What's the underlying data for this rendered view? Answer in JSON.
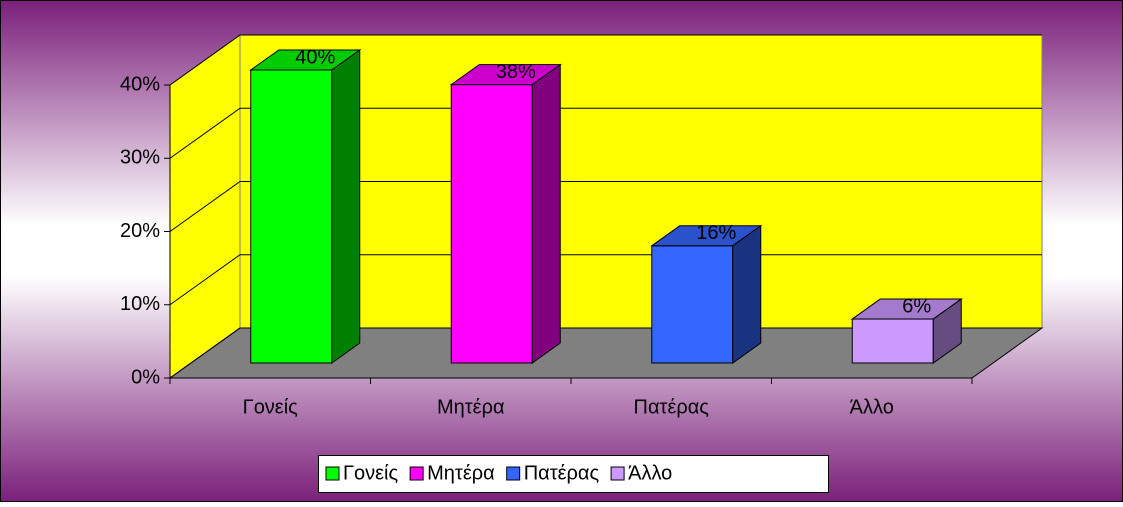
{
  "chart_data": {
    "type": "bar3d",
    "categories": [
      "Γονείς",
      "Μητέρα",
      "Πατέρας",
      "Άλλο"
    ],
    "values": [
      40,
      38,
      16,
      6
    ],
    "value_labels": [
      "40%",
      "38%",
      "16%",
      "6%"
    ],
    "colors": [
      "#00ff00",
      "#ff00ff",
      "#3366ff",
      "#cc99ff"
    ],
    "ylim": [
      0,
      40
    ],
    "yticks": [
      {
        "value": 0,
        "label": "0%"
      },
      {
        "value": 10,
        "label": "10%"
      },
      {
        "value": 20,
        "label": "20%"
      },
      {
        "value": 30,
        "label": "30%"
      },
      {
        "value": 40,
        "label": "40%"
      }
    ],
    "grid": true,
    "legend": "bottom"
  }
}
